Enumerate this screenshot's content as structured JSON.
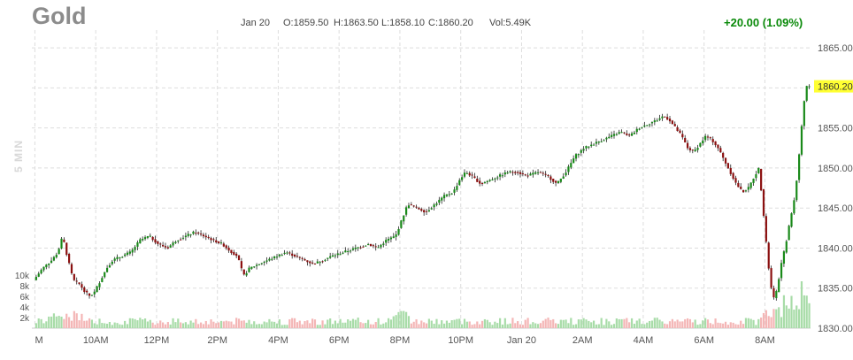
{
  "chart_data": {
    "type": "candlestick",
    "title": "Gold",
    "interval_label": "5 MIN",
    "ohlc_summary": {
      "date": "Jan 20",
      "open": "O:1859.50",
      "high": "H:1863.50",
      "low": "L:1858.10",
      "close": "C:1860.20",
      "volume": "Vol:5.49K"
    },
    "change_label": "+20.00 (1.09%)",
    "last_price_label": "1860.20",
    "last_price": 1860.2,
    "ylim": [
      1830,
      1867
    ],
    "y_ticks": [
      {
        "value": 1865,
        "label": "1865.00"
      },
      {
        "value": 1860,
        "label": "1860.00"
      },
      {
        "value": 1855,
        "label": "1855.00"
      },
      {
        "value": 1850,
        "label": "1850.00"
      },
      {
        "value": 1845,
        "label": "1845.00"
      },
      {
        "value": 1840,
        "label": "1840.00"
      },
      {
        "value": 1835,
        "label": "1835.00"
      },
      {
        "value": 1830,
        "label": "1830.00"
      }
    ],
    "volume_ticks": [
      {
        "value": 10000,
        "label": "10k"
      },
      {
        "value": 8000,
        "label": "8k"
      },
      {
        "value": 6000,
        "label": "6k"
      },
      {
        "value": 4000,
        "label": "4k"
      },
      {
        "value": 2000,
        "label": "2k"
      }
    ],
    "x_ticks": [
      "M",
      "10AM",
      "12PM",
      "2PM",
      "4PM",
      "6PM",
      "8PM",
      "10PM",
      "Jan 20",
      "2AM",
      "4AM",
      "6AM",
      "8AM"
    ],
    "x_tick_hours": [
      8,
      10,
      12,
      14,
      16,
      18,
      20,
      22,
      24,
      26,
      28,
      30,
      32
    ],
    "x_range_hours": [
      7.9,
      33.5
    ],
    "price_path": [
      [
        8.0,
        1836.0
      ],
      [
        8.3,
        1837.5
      ],
      [
        8.6,
        1838.5
      ],
      [
        8.8,
        1839.5
      ],
      [
        8.95,
        1841.5
      ],
      [
        9.1,
        1839.0
      ],
      [
        9.3,
        1836.0
      ],
      [
        9.5,
        1835.5
      ],
      [
        9.7,
        1834.5
      ],
      [
        9.85,
        1834.0
      ],
      [
        10.0,
        1834.5
      ],
      [
        10.2,
        1836.0
      ],
      [
        10.4,
        1837.5
      ],
      [
        10.6,
        1838.5
      ],
      [
        10.9,
        1839.0
      ],
      [
        11.2,
        1839.5
      ],
      [
        11.5,
        1841.0
      ],
      [
        11.8,
        1841.5
      ],
      [
        12.1,
        1840.5
      ],
      [
        12.4,
        1840.0
      ],
      [
        12.7,
        1841.0
      ],
      [
        13.0,
        1841.5
      ],
      [
        13.3,
        1842.0
      ],
      [
        13.6,
        1841.5
      ],
      [
        13.9,
        1841.0
      ],
      [
        14.2,
        1840.5
      ],
      [
        14.5,
        1839.5
      ],
      [
        14.7,
        1839.0
      ],
      [
        14.9,
        1836.5
      ],
      [
        15.1,
        1837.5
      ],
      [
        15.4,
        1838.0
      ],
      [
        15.7,
        1838.5
      ],
      [
        16.0,
        1839.0
      ],
      [
        16.3,
        1839.5
      ],
      [
        16.6,
        1839.0
      ],
      [
        16.9,
        1838.5
      ],
      [
        17.2,
        1838.0
      ],
      [
        17.5,
        1838.5
      ],
      [
        17.8,
        1839.0
      ],
      [
        18.2,
        1839.5
      ],
      [
        18.6,
        1840.0
      ],
      [
        19.0,
        1840.5
      ],
      [
        19.3,
        1840.0
      ],
      [
        19.6,
        1841.0
      ],
      [
        19.9,
        1841.5
      ],
      [
        20.1,
        1843.5
      ],
      [
        20.3,
        1845.5
      ],
      [
        20.6,
        1845.0
      ],
      [
        20.9,
        1844.5
      ],
      [
        21.2,
        1845.5
      ],
      [
        21.5,
        1846.5
      ],
      [
        21.8,
        1847.0
      ],
      [
        22.0,
        1848.5
      ],
      [
        22.2,
        1849.5
      ],
      [
        22.4,
        1849.0
      ],
      [
        22.7,
        1848.0
      ],
      [
        23.0,
        1848.5
      ],
      [
        23.3,
        1849.0
      ],
      [
        23.6,
        1849.5
      ],
      [
        23.9,
        1849.5
      ],
      [
        24.2,
        1849.0
      ],
      [
        24.6,
        1849.5
      ],
      [
        24.9,
        1849.0
      ],
      [
        25.2,
        1848.0
      ],
      [
        25.5,
        1849.5
      ],
      [
        25.8,
        1851.5
      ],
      [
        26.1,
        1852.5
      ],
      [
        26.4,
        1853.0
      ],
      [
        26.7,
        1853.5
      ],
      [
        27.0,
        1854.0
      ],
      [
        27.3,
        1854.5
      ],
      [
        27.6,
        1854.0
      ],
      [
        27.9,
        1855.0
      ],
      [
        28.2,
        1855.5
      ],
      [
        28.5,
        1856.0
      ],
      [
        28.7,
        1856.5
      ],
      [
        28.9,
        1856.0
      ],
      [
        29.1,
        1855.0
      ],
      [
        29.3,
        1854.0
      ],
      [
        29.5,
        1852.5
      ],
      [
        29.7,
        1852.0
      ],
      [
        29.9,
        1853.0
      ],
      [
        30.1,
        1854.0
      ],
      [
        30.3,
        1853.5
      ],
      [
        30.5,
        1852.5
      ],
      [
        30.7,
        1851.0
      ],
      [
        30.9,
        1849.5
      ],
      [
        31.1,
        1848.0
      ],
      [
        31.3,
        1847.0
      ],
      [
        31.5,
        1847.5
      ],
      [
        31.7,
        1849.0
      ],
      [
        31.85,
        1850.0
      ],
      [
        31.95,
        1846.0
      ],
      [
        32.05,
        1842.0
      ],
      [
        32.15,
        1838.0
      ],
      [
        32.25,
        1835.0
      ],
      [
        32.35,
        1833.5
      ],
      [
        32.45,
        1835.0
      ],
      [
        32.55,
        1837.5
      ],
      [
        32.7,
        1840.0
      ],
      [
        32.85,
        1843.0
      ],
      [
        33.0,
        1846.0
      ],
      [
        33.1,
        1849.0
      ],
      [
        33.2,
        1853.0
      ],
      [
        33.3,
        1857.5
      ],
      [
        33.4,
        1860.2
      ]
    ]
  }
}
